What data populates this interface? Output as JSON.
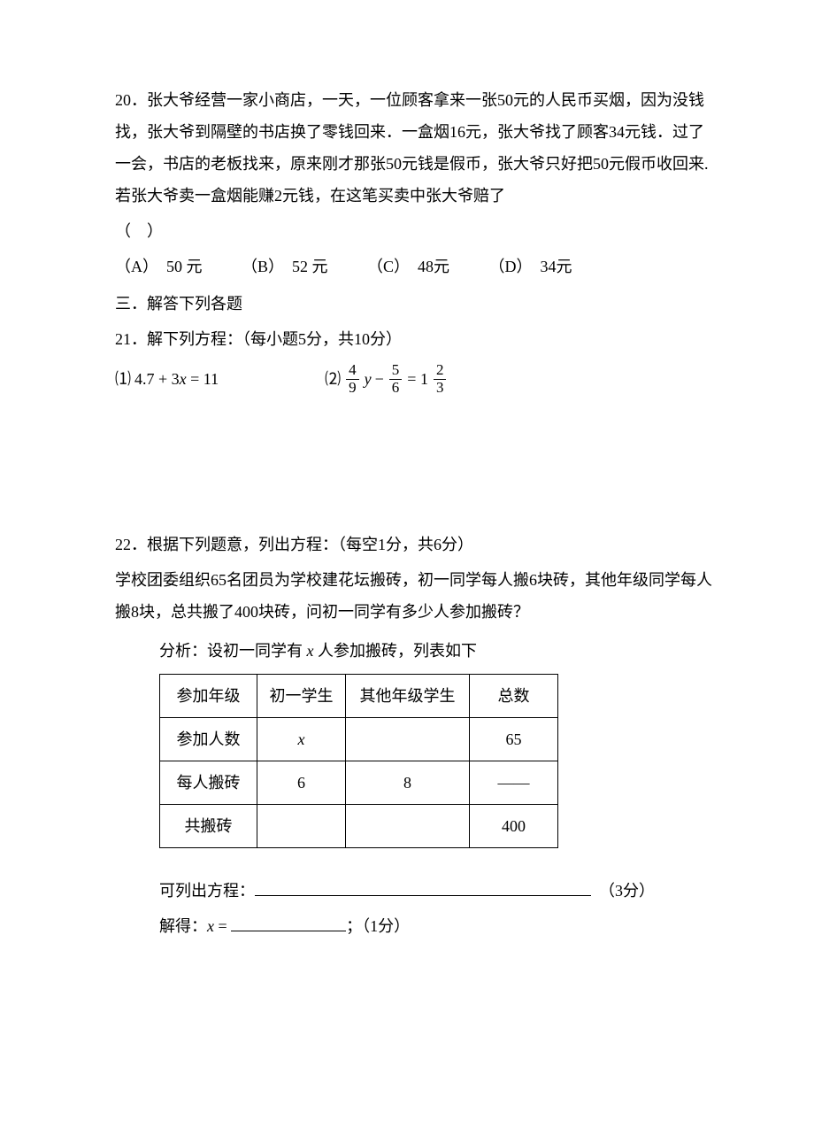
{
  "q20": {
    "text": "20．张大爷经营一家小商店，一天，一位顾客拿来一张50元的人民币买烟，因为没钱找，张大爷到隔壁的书店换了零钱回来．一盒烟16元，张大爷找了顾客34元钱．过了一会，书店的老板找来，原来刚才那张50元钱是假币，张大爷只好把50元假币收回来.若张大爷卖一盒烟能赚2元钱，在这笔买卖中张大爷赔了",
    "bracket": "（　）",
    "choices": {
      "a": "（A）　50 元",
      "b": "（B）　52 元",
      "c": "（C）　48元",
      "d": "（D）　34元"
    }
  },
  "section3": "三．解答下列各题",
  "q21": {
    "header": "21．解下列方程：（每小题5分，共10分）",
    "eq1_label": "⑴",
    "eq1": "4.7 + 3",
    "eq1_x": "x",
    "eq1_tail": " = 11",
    "eq2_label": "⑵",
    "eq2_frac1_num": "4",
    "eq2_frac1_den": "9",
    "eq2_var": "y",
    "eq2_minus": " − ",
    "eq2_frac2_num": "5",
    "eq2_frac2_den": "6",
    "eq2_eq": " = 1",
    "eq2_frac3_num": "2",
    "eq2_frac3_den": "3"
  },
  "q22": {
    "header": "22．根据下列题意，列出方程：（每空1分，共6分）",
    "body1": "学校团委组织65名团员为学校建花坛搬砖，初一同学每人搬6块砖，其他年级同学每人搬8块，总共搬了400块砖，问初一同学有多少人参加搬砖？",
    "analysis_prefix": "分析：设初一同学有 ",
    "analysis_var": "x",
    "analysis_suffix": " 人参加搬砖，列表如下",
    "table": {
      "r0": {
        "c0": "参加年级",
        "c1": "初一学生",
        "c2": "其他年级学生",
        "c3": "总数"
      },
      "r1": {
        "c0": "参加人数",
        "c1": "x",
        "c2": "",
        "c3": "65"
      },
      "r2": {
        "c0": "每人搬砖",
        "c1": "6",
        "c2": "8",
        "c3": "——"
      },
      "r3": {
        "c0": "共搬砖",
        "c1": "",
        "c2": "",
        "c3": "400"
      }
    },
    "eq_line_prefix": "可列出方程：",
    "eq_line_suffix": "　（3分）",
    "solve_prefix": "解得：",
    "solve_var": "x",
    "solve_eq": " = ",
    "solve_suffix": "；（1分）"
  }
}
